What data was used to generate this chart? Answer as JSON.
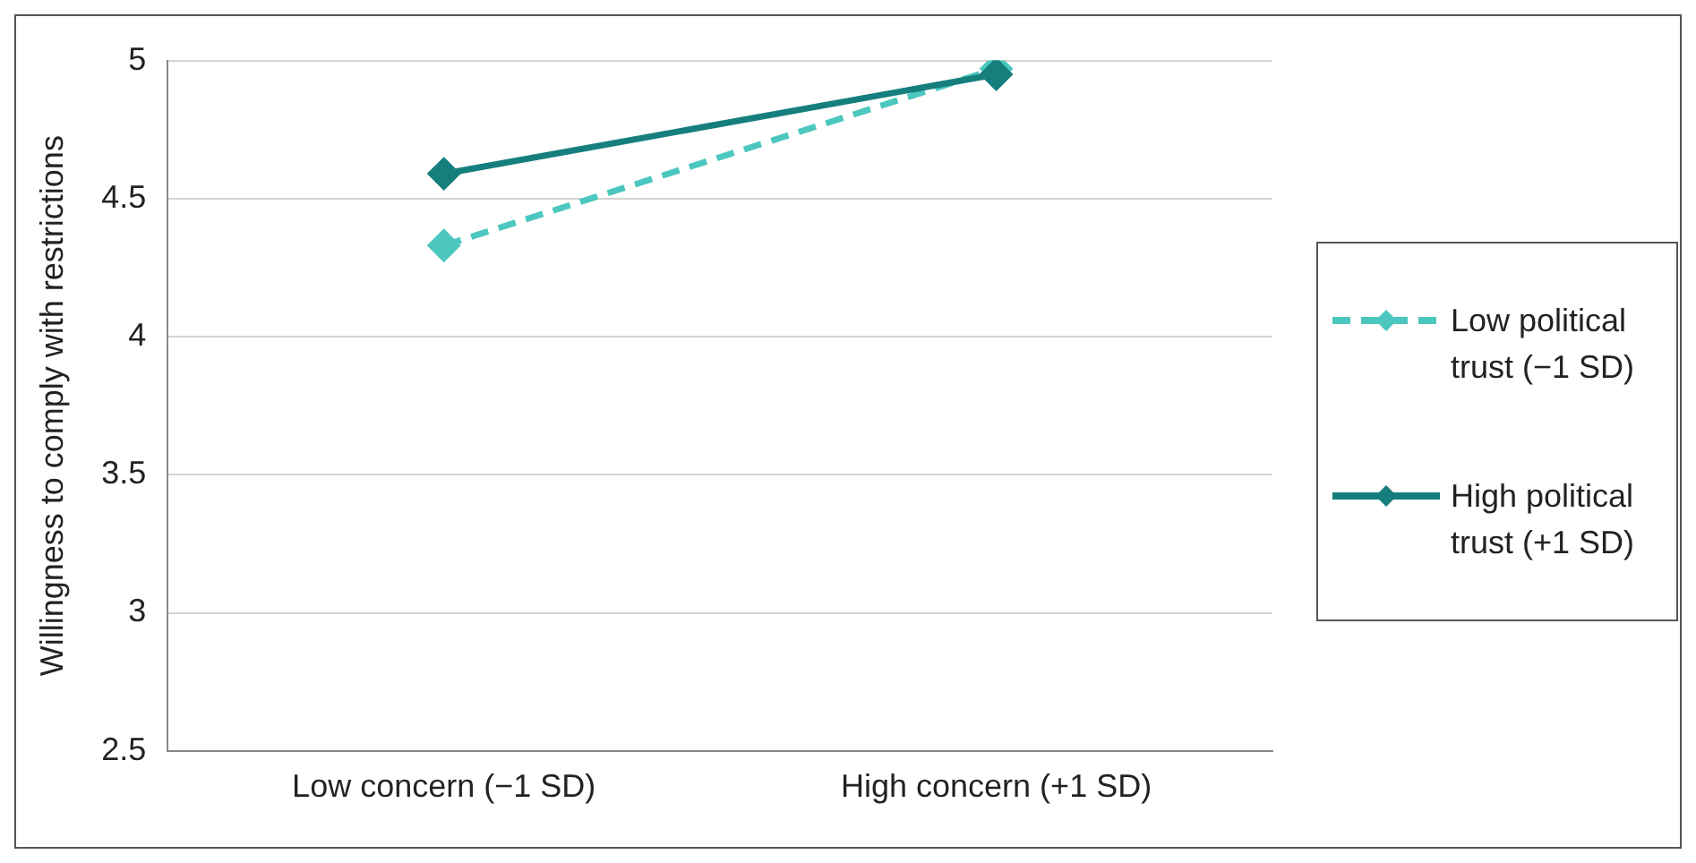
{
  "chart_data": {
    "type": "line",
    "ylabel": "Willingness to comply with restrictions",
    "categories": [
      "Low concern (−1 SD)",
      "High concern (+1 SD)"
    ],
    "series": [
      {
        "name": "Low political trust (−1 SD)",
        "color": "#4cc7bf",
        "values": [
          4.33,
          4.97
        ],
        "line_style": "dashed"
      },
      {
        "name": "High political trust (+1 SD)",
        "color": "#167f7e",
        "values": [
          4.59,
          4.95
        ],
        "line_style": "solid"
      }
    ],
    "ylim": [
      2.5,
      5
    ],
    "yticks": [
      2.5,
      3,
      3.5,
      4,
      4.5,
      5
    ],
    "grid": "y",
    "legend": "right",
    "marker": "diamond"
  }
}
